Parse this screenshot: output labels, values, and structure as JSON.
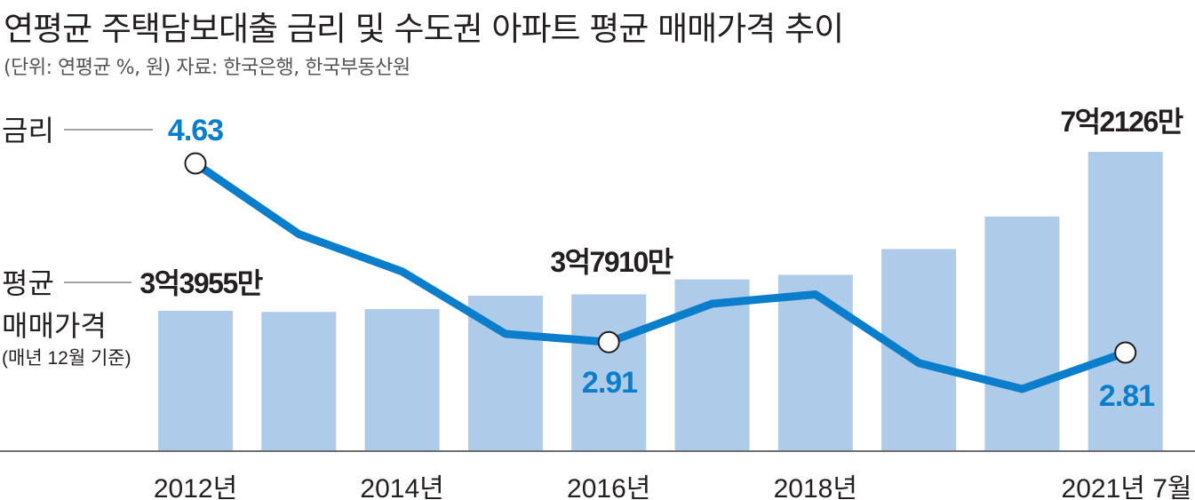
{
  "header": {
    "title": "연평균 주택담보대출 금리 및 수도권 아파트 평균 매매가격 추이",
    "subtitle": "(단위: 연평균 %, 원) 자료: 한국은행, 한국부동산원"
  },
  "legend": {
    "rate_label": "금리",
    "price_label_line1": "평균",
    "price_label_line2": "매매가격",
    "price_note": "(매년 12월 기준)"
  },
  "colors": {
    "bar": "#aecbea",
    "line": "#0a7ecb",
    "rate_text": "#0a7ecb",
    "text": "#231f20"
  },
  "chart_data": {
    "type": "bar+line",
    "categories": [
      "2012",
      "2013",
      "2014",
      "2015",
      "2016",
      "2017",
      "2018",
      "2019",
      "2020",
      "2021.7"
    ],
    "x_tick_labels": [
      {
        "index": 0,
        "label": "2012년"
      },
      {
        "index": 2,
        "label": "2014년"
      },
      {
        "index": 4,
        "label": "2016년"
      },
      {
        "index": 6,
        "label": "2018년"
      },
      {
        "index": 9,
        "label": "2021년 7월"
      }
    ],
    "series": [
      {
        "name": "평균 매매가격",
        "kind": "bar",
        "values": [
          33955,
          33700,
          34400,
          37600,
          37910,
          41500,
          42600,
          48800,
          56600,
          72126
        ],
        "unit": "만원",
        "data_labels": [
          {
            "index": 0,
            "label": "3억3955만"
          },
          {
            "index": 4,
            "label": "3억7910만"
          },
          {
            "index": 9,
            "label": "7억2126만"
          }
        ]
      },
      {
        "name": "금리",
        "kind": "line",
        "values": [
          4.63,
          3.95,
          3.59,
          2.99,
          2.91,
          3.28,
          3.37,
          2.71,
          2.46,
          2.81
        ],
        "unit": "%",
        "data_labels": [
          {
            "index": 0,
            "label": "4.63"
          },
          {
            "index": 4,
            "label": "2.91"
          },
          {
            "index": 9,
            "label": "2.81"
          }
        ]
      }
    ]
  }
}
